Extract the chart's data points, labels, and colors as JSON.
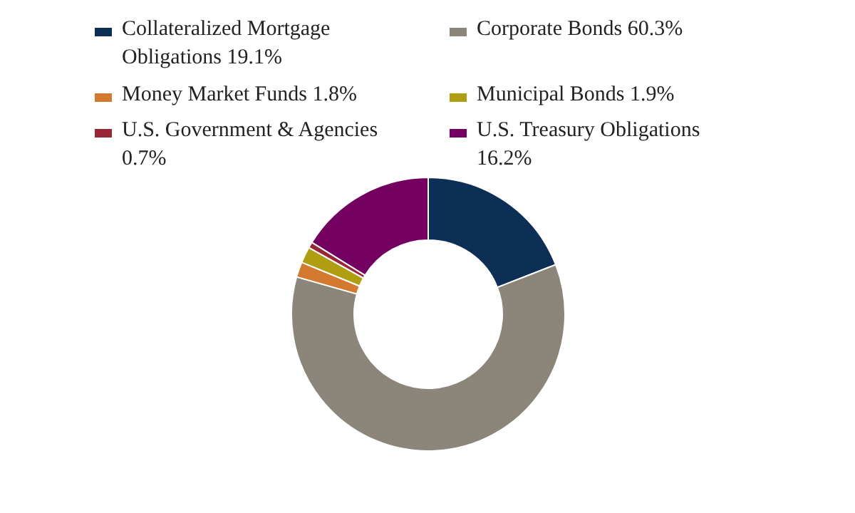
{
  "chart_data": {
    "type": "donut",
    "legend": "top",
    "categories": [
      "Collateralized Mortgage Obligations",
      "Corporate Bonds",
      "Money Market Funds",
      "Municipal Bonds",
      "U.S. Government & Agencies",
      "U.S. Treasury Obligations"
    ],
    "values": [
      19.1,
      60.3,
      1.8,
      1.9,
      0.7,
      16.2
    ],
    "value_labels": [
      "19.1%",
      "60.3%",
      "1.8%",
      "1.9%",
      "0.7%",
      "16.2%"
    ],
    "colors": [
      "#0d2f56",
      "#8b857a",
      "#d47a30",
      "#b09e12",
      "#982637",
      "#730060"
    ]
  }
}
